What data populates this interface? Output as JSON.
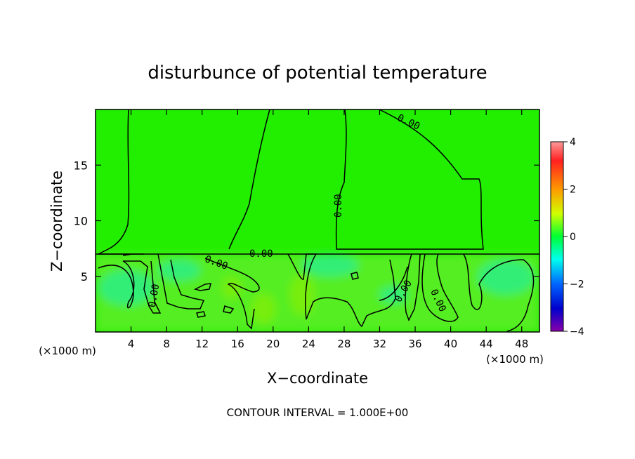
{
  "chart_data": {
    "type": "heatmap",
    "title": "disturbunce of potential temperature",
    "xlabel": "X−coordinate",
    "ylabel": "Z−coordinate",
    "x_unit": "(×1000 m)",
    "y_unit": "(×1000 m)",
    "footer": "CONTOUR INTERVAL = 1.000E+00",
    "xlim": [
      0,
      50
    ],
    "ylim": [
      0,
      20
    ],
    "x_ticks": [
      4,
      8,
      12,
      16,
      20,
      24,
      28,
      32,
      36,
      40,
      44,
      48
    ],
    "y_ticks": [
      5,
      10,
      15
    ],
    "colorbar": {
      "min": -4,
      "max": 4,
      "ticks": [
        4,
        2,
        0,
        -2,
        -4
      ]
    },
    "contour_level": "0.00",
    "grid": false
  }
}
